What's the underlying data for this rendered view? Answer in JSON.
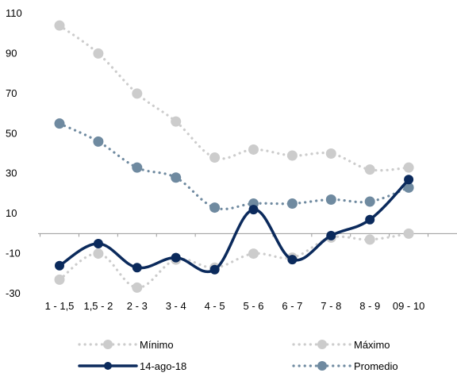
{
  "chart_data": {
    "type": "line",
    "categories": [
      "1 - 1,5",
      "1,5 - 2",
      "2 - 3",
      "3 - 4",
      "4 - 5",
      "5 - 6",
      "6 - 7",
      "7 - 8",
      "8 - 9",
      "09 - 10"
    ],
    "ylim": [
      -30,
      110
    ],
    "y_ticks": [
      110,
      90,
      70,
      50,
      30,
      10,
      -10,
      -30
    ],
    "grid": false,
    "legend_position": "bottom",
    "series": [
      {
        "name": "Mínimo",
        "key": "minimo",
        "style": "dotted-markers",
        "color": "#cccccc",
        "values": [
          -23,
          -10,
          -27,
          -13,
          -17,
          -10,
          -12,
          -2,
          -3,
          0
        ]
      },
      {
        "name": "Máximo",
        "key": "maximo",
        "style": "dotted-markers",
        "color": "#cccccc",
        "values": [
          104,
          90,
          70,
          56,
          38,
          42,
          39,
          40,
          32,
          33
        ]
      },
      {
        "name": "14-ago-18",
        "key": "fecha",
        "style": "solid-markers",
        "color": "#0b2a5c",
        "values": [
          -16,
          -5,
          -17,
          -12,
          -18,
          12,
          -13,
          -1,
          7,
          27
        ]
      },
      {
        "name": "Promedio",
        "key": "promedio",
        "style": "dotted-markers",
        "color": "#6f8aa0",
        "values": [
          55,
          46,
          33,
          28,
          13,
          15,
          15,
          17,
          16,
          23
        ]
      }
    ]
  }
}
